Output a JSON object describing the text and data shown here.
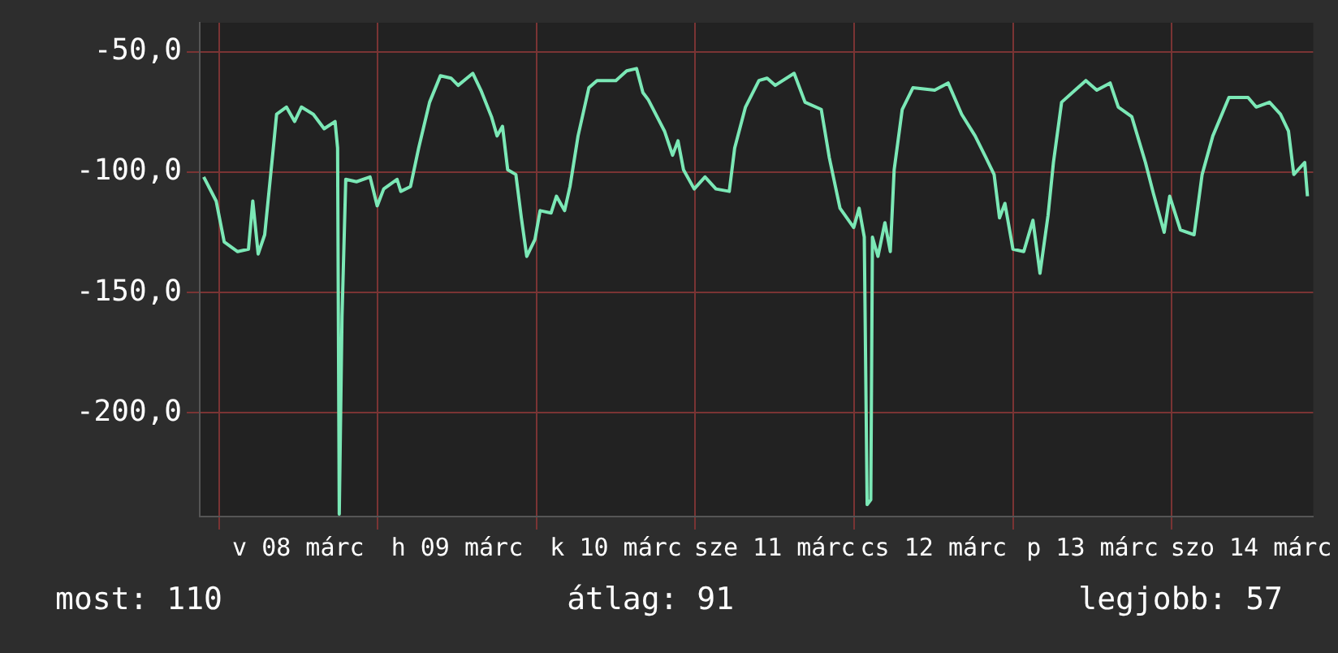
{
  "chart_data": {
    "type": "line",
    "x": [
      "--03-07T21:43",
      "--03-07T23:36",
      "--03-08T00:49",
      "--03-08T02:51",
      "--03-08T04:29",
      "--03-08T05:08",
      "--03-08T05:57",
      "--03-08T06:56",
      "--03-08T08:10",
      "--03-08T08:44",
      "--03-08T10:13",
      "--03-08T11:27",
      "--03-08T12:29",
      "--03-08T14:17",
      "--03-08T15:55",
      "--03-08T17:34",
      "--03-08T17:57",
      "--03-08T18:12",
      "--03-08T18:37",
      "--03-08T19:11",
      "--03-08T20:48",
      "--03-08T22:51",
      "--03-08T23:56",
      "--03-09T00:55",
      "--03-09T02:56",
      "--03-09T03:30",
      "--03-09T04:58",
      "--03-09T06:12",
      "--03-09T07:51",
      "--03-09T09:29",
      "--03-09T11:05",
      "--03-09T12:10",
      "--03-09T14:23",
      "--03-09T15:36",
      "--03-09T17:12",
      "--03-09T18:03",
      "--03-09T18:52",
      "--03-09T19:39",
      "--03-09T20:53",
      "--03-09T21:43",
      "--03-09T22:32",
      "--03-09T23:46",
      "--03-10T00:33",
      "--03-10T02:12",
      "--03-10T03:01",
      "--03-10T04:15",
      "--03-10T05:04",
      "--03-10T06:17",
      "--03-10T07:55",
      "--03-10T09:09",
      "--03-10T12:00",
      "--03-10T13:38",
      "--03-10T15:07",
      "--03-10T16:05",
      "--03-10T16:54",
      "--03-10T19:21",
      "--03-10T20:34",
      "--03-10T21:23",
      "--03-10T22:13",
      "--03-10T23:50",
      "--03-11T01:28",
      "--03-11T03:07",
      "--03-11T05:08",
      "--03-11T05:57",
      "--03-11T07:35",
      "--03-11T09:37",
      "--03-11T10:51",
      "--03-11T12:04",
      "--03-11T14:56",
      "--03-11T16:35",
      "--03-11T19:02",
      "--03-11T20:15",
      "--03-11T21:52",
      "--03-11T23:56",
      "--03-12T00:45",
      "--03-12T01:32",
      "--03-12T01:58",
      "--03-12T02:31",
      "--03-12T02:46",
      "--03-12T03:36",
      "--03-12T04:39",
      "--03-12T05:28",
      "--03-12T06:03",
      "--03-12T07:16",
      "--03-12T08:53",
      "--03-12T12:10",
      "--03-12T14:12",
      "--03-12T16:15",
      "--03-12T18:17",
      "--03-12T19:55",
      "--03-12T21:09",
      "--03-12T21:58",
      "--03-12T22:47",
      "--03-13T00:00",
      "--03-13T01:38",
      "--03-13T03:01",
      "--03-13T04:05",
      "--03-13T05:18",
      "--03-13T06:07",
      "--03-13T07:21",
      "--03-13T09:23",
      "--03-13T11:01",
      "--03-13T12:40",
      "--03-13T14:41",
      "--03-13T15:55",
      "--03-13T17:57",
      "--03-13T20:01",
      "--03-13T21:14",
      "--03-13T22:51",
      "--03-13T23:41",
      "--03-14T01:18",
      "--03-14T03:22",
      "--03-14T04:35",
      "--03-14T06:12",
      "--03-14T08:38",
      "--03-14T11:31",
      "--03-14T12:45",
      "--03-14T14:46",
      "--03-14T16:25",
      "--03-14T17:38",
      "--03-14T18:26",
      "--03-14T20:05",
      "--03-14T20:30"
    ],
    "series": [
      {
        "color": "#7be8b6",
        "values": [
          -102,
          -112,
          -129,
          -133,
          -132,
          -112,
          -134,
          -126,
          -92,
          -76,
          -73,
          -79,
          -73,
          -76,
          -82,
          -79,
          -90,
          -242,
          -160,
          -103,
          -104,
          -102,
          -114,
          -107,
          -103,
          -108,
          -106,
          -90,
          -71,
          -60,
          -61,
          -64,
          -59,
          -66,
          -77,
          -85,
          -81,
          -99,
          -101,
          -119,
          -135,
          -128,
          -116,
          -117,
          -110,
          -116,
          -106,
          -85,
          -65,
          -62,
          -62,
          -58,
          -57,
          -67,
          -70,
          -83,
          -93,
          -87,
          -99,
          -107,
          -102,
          -107,
          -108,
          -90,
          -73,
          -62,
          -61,
          -64,
          -59,
          -71,
          -74,
          -94,
          -115,
          -123,
          -115,
          -127,
          -238,
          -236,
          -127,
          -135,
          -121,
          -133,
          -99,
          -74,
          -65,
          -66,
          -63,
          -76,
          -85,
          -94,
          -101,
          -119,
          -113,
          -132,
          -133,
          -120,
          -142,
          -118,
          -96,
          -71,
          -66,
          -62,
          -66,
          -63,
          -73,
          -77,
          -96,
          -109,
          -125,
          -110,
          -124,
          -126,
          -101,
          -85,
          -69,
          -69,
          -73,
          -71,
          -76,
          -83,
          -101,
          -96,
          -110
        ]
      }
    ],
    "xlim": [
      "--03-07T21:07",
      "--03-14T21:22"
    ],
    "xticks": [
      {
        "value": "--03-08",
        "label": null
      },
      {
        "value": "--03-08T12:00",
        "label": "v 08 márc"
      },
      {
        "value": "--03-09",
        "label": null
      },
      {
        "value": "--03-09T12:00",
        "label": "h 09 márc"
      },
      {
        "value": "--03-10",
        "label": null
      },
      {
        "value": "--03-10T12:00",
        "label": "k 10 márc"
      },
      {
        "value": "--03-11",
        "label": null
      },
      {
        "value": "--03-11T12:00",
        "label": "sze 11 márc"
      },
      {
        "value": "--03-12",
        "label": null
      },
      {
        "value": "--03-12T12:00",
        "label": "cs 12 márc"
      },
      {
        "value": "--03-13",
        "label": null
      },
      {
        "value": "--03-13T12:00",
        "label": "p 13 márc"
      },
      {
        "value": "--03-14",
        "label": null
      },
      {
        "value": "--03-14T12:00",
        "label": "szo 14 márc"
      }
    ],
    "ylim": [
      -243,
      -38
    ],
    "yticks": [
      {
        "value": -50,
        "label": "-50,0"
      },
      {
        "value": -100,
        "label": "-100,0"
      },
      {
        "value": -150,
        "label": "-150,0"
      },
      {
        "value": -200,
        "label": "-200,0"
      }
    ],
    "grid": true,
    "legend": false,
    "marker": "none",
    "line_style": "solid",
    "annotations": [
      "most: 110",
      "átlag: 91",
      "legjobb: 57"
    ]
  }
}
